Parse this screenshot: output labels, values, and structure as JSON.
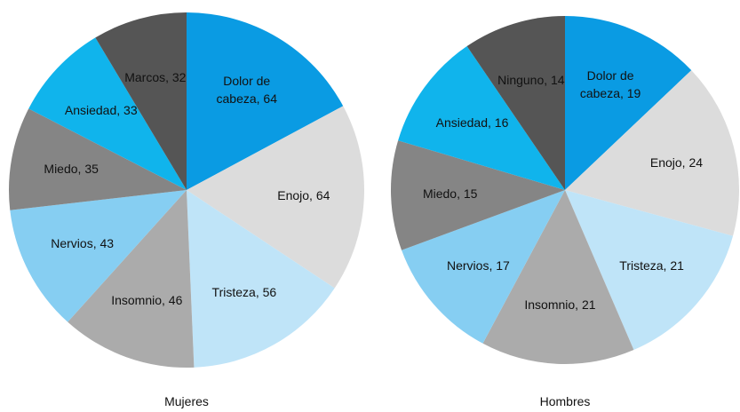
{
  "chart_data": [
    {
      "type": "pie",
      "title": "Mujeres",
      "categories": [
        "Dolor de cabeza",
        "Enojo",
        "Tristeza",
        "Insomnio",
        "Nervios",
        "Miedo",
        "Ansiedad",
        "Marcos"
      ],
      "values": [
        64,
        64,
        56,
        46,
        43,
        35,
        33,
        32
      ],
      "value_labels": [
        "Dolor de cabeza, 64",
        "Enojo, 64",
        "Tristeza, 56",
        "Insomnio, 46",
        "Nervios, 43",
        "Miedo, 35",
        "Ansiedad, 33",
        "Marcos, 32"
      ],
      "colors": [
        "#0a9be3",
        "#dcdcdc",
        "#bfe4f8",
        "#ababab",
        "#86cef2",
        "#858585",
        "#10b4ec",
        "#555555"
      ]
    },
    {
      "type": "pie",
      "title": "Hombres",
      "categories": [
        "Dolor de cabeza",
        "Enojo",
        "Tristeza",
        "Insomnio",
        "Nervios",
        "Miedo",
        "Ansiedad",
        "Ninguno"
      ],
      "values": [
        19,
        24,
        21,
        21,
        17,
        15,
        16,
        14
      ],
      "value_labels": [
        "Dolor de cabeza, 19",
        "Enojo, 24",
        "Tristeza, 21",
        "Insomnio, 21",
        "Nervios, 17",
        "Miedo, 15",
        "Ansiedad, 16",
        "Ninguno, 14"
      ],
      "colors": [
        "#0a9be3",
        "#dcdcdc",
        "#bfe4f8",
        "#ababab",
        "#86cef2",
        "#858585",
        "#10b4ec",
        "#555555"
      ]
    }
  ]
}
